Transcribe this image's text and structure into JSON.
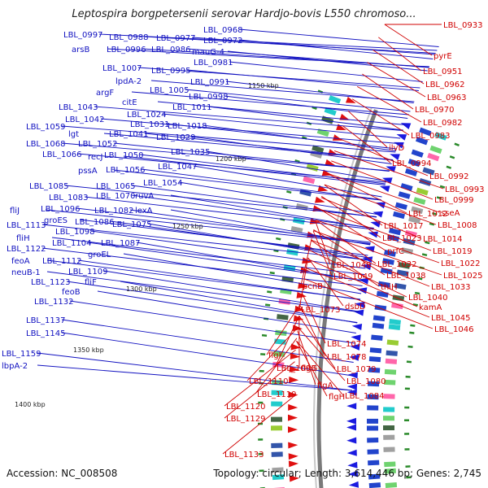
{
  "title": "Leptospira borgpetersenii serovar Hardjo-bovis L550 chromoso...",
  "accession": "Accession: NC_008508",
  "topology": "Topology: circular; Length: 3,614,446 bp; Genes: 2,745",
  "colors": {
    "reverse_labels": "#1010c0",
    "forward_labels": "#d00000",
    "backbone": "#7a7a7a",
    "orf_green": "#2a8a2a"
  },
  "scale_ticks": [
    "1150 kbp",
    "1200 kbp",
    "1250 kbp",
    "1300 kbp",
    "1350 kbp",
    "1400 kbp"
  ],
  "reverse_strand_labels": [
    "LBL_0997",
    "LBL_0988",
    "LBL_0977",
    "LBL_0968",
    "arsB",
    "LBL_0996",
    "LBL_0986",
    "LBL_0972",
    "mauG-4",
    "LBL_0981",
    "LBL_1007",
    "LBL_0995",
    "lpdA-2",
    "LBL_0991",
    "LBL_1005",
    "LBL_0998",
    "argF",
    "citE",
    "LBL_1011",
    "LBL_1043",
    "LBL_1024",
    "LBL_1042",
    "LBL_1031",
    "LBL_1018",
    "LBL_1059",
    "lgt",
    "LBL_1041",
    "LBL_1029",
    "LBL_1068",
    "LBL_1052",
    "LBL_1066",
    "recJ",
    "LBL_1050",
    "LBL_1035",
    "pssA",
    "LBL_1056",
    "LBL_1047",
    "LBL_1085",
    "LBL_1065",
    "LBL_1054",
    "LBL_1083",
    "LBL_1070",
    "ruvA",
    "fliJ",
    "LBL_1096",
    "LBL_1082",
    "lexA",
    "LBL_1113",
    "groES",
    "LBL_1086",
    "LBL_1075",
    "fliH",
    "LBL_1098",
    "LBL_1122",
    "LBL_1104",
    "LBL_1087",
    "feoA",
    "LBL_1112",
    "groEL",
    "neuB-1",
    "LBL_1109",
    "LBL_1123",
    "fliF",
    "feoB",
    "LBL_1132",
    "LBL_1137",
    "LBL_1145",
    "LBL_1159",
    "lbpA-2"
  ],
  "forward_strand_labels": [
    "LBL_0933",
    "pyrE",
    "LBL_0951",
    "LBL_0962",
    "LBL_0963",
    "LBL_0970",
    "LBL_0982",
    "LBL_0983",
    "ilvD",
    "LBL_0994",
    "LBL_0992",
    "LBL_0993",
    "LBL_0999",
    "sseA",
    "LBL_1012",
    "LBL_1008",
    "LBL_1017",
    "LBL_1014",
    "LBL_1023",
    "LBL_1019",
    "prfC",
    "LBL_1022",
    "LBL_1048",
    "LBL_1032",
    "LBL_1025",
    "LBL_1049",
    "LBL_1038",
    "thiH",
    "LBL_1033",
    "LBL_1040",
    "pcnB",
    "kamA",
    "dsbD",
    "LBL_1073",
    "LBL_1045",
    "LBL_1046",
    "LBL_1074",
    "LBL_1078",
    "flgI",
    "LBL_1093",
    "flgG",
    "LBL_1079",
    "LBL_1110",
    "LBL_1080",
    "flgA",
    "LBL_1084",
    "flgH",
    "LBL_1119",
    "LBL_1120",
    "LBL_1129",
    "LBL_1133"
  ]
}
